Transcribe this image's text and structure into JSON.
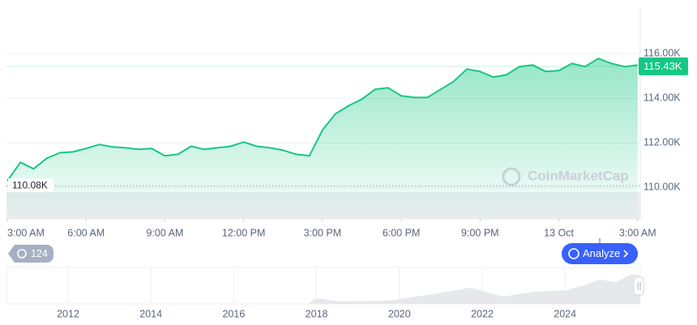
{
  "chart_data": {
    "type": "area",
    "color": "#16c784",
    "grid": true,
    "x": [
      0,
      0.5,
      1,
      1.5,
      2,
      2.5,
      3,
      3.5,
      4,
      4.5,
      5,
      5.5,
      6,
      6.5,
      7,
      7.5,
      8,
      8.5,
      9,
      9.5,
      10,
      10.5,
      11,
      11.5,
      12,
      12.5,
      13,
      13.5,
      14,
      14.5,
      15,
      15.5,
      16,
      16.5,
      17,
      17.5,
      18,
      18.5,
      19,
      19.5,
      20,
      20.5,
      21,
      21.5,
      22,
      22.5,
      23,
      23.5,
      24
    ],
    "values": [
      110.3,
      111.13,
      110.84,
      111.31,
      111.56,
      111.6,
      111.75,
      111.93,
      111.82,
      111.78,
      111.71,
      111.75,
      111.42,
      111.49,
      111.85,
      111.71,
      111.78,
      111.85,
      112.04,
      111.85,
      111.78,
      111.67,
      111.49,
      111.42,
      112.58,
      113.31,
      113.67,
      113.96,
      114.4,
      114.47,
      114.11,
      114.04,
      114.04,
      114.4,
      114.76,
      115.31,
      115.2,
      114.95,
      115.05,
      115.42,
      115.49,
      115.2,
      115.24,
      115.56,
      115.42,
      115.78,
      115.56,
      115.42,
      115.49
    ],
    "xlim": [
      0,
      24.1
    ],
    "xticks": [
      {
        "value": 0,
        "label": "3:00 AM"
      },
      {
        "value": 3,
        "label": "6:00 AM"
      },
      {
        "value": 6,
        "label": "9:00 AM"
      },
      {
        "value": 9,
        "label": "12:00 PM"
      },
      {
        "value": 12,
        "label": "3:00 PM"
      },
      {
        "value": 15,
        "label": "6:00 PM"
      },
      {
        "value": 18,
        "label": "9:00 PM"
      },
      {
        "value": 21,
        "label": "13 Oct"
      },
      {
        "value": 24,
        "label": "3:00 AM"
      }
    ],
    "ylim": [
      108.6,
      118.04
    ],
    "yticks": [
      {
        "value": 110,
        "label": "110.00K"
      },
      {
        "value": 112,
        "label": "112.00K"
      },
      {
        "value": 114,
        "label": "114.00K"
      },
      {
        "value": 116,
        "label": "116.00K"
      }
    ],
    "last_price": {
      "value": 115.43,
      "label": "115.43K"
    },
    "reference": {
      "value": 110.08,
      "label": "110.08K"
    },
    "watermark": "CoinMarketCap"
  },
  "badge": "124",
  "button": "Analyze",
  "navigator": {
    "ticks": [
      "2012",
      "2014",
      "2016",
      "2018",
      "2020",
      "2022",
      "2024"
    ]
  }
}
